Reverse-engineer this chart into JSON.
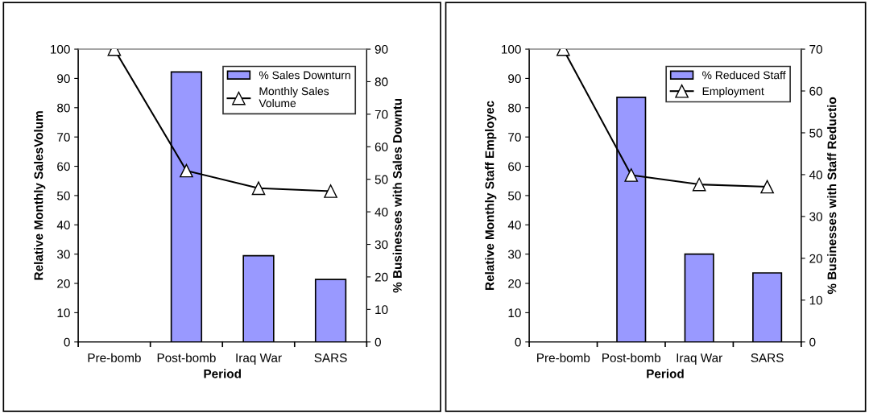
{
  "chart_data": [
    {
      "type": "bar",
      "categories": [
        "Pre-bomb",
        "Post-bomb",
        "Iraq War",
        "SARS"
      ],
      "xlabel": "Period",
      "ylabel": "Relative Monthly SalesVolum",
      "y2label": "% Businesses with Sales Downtu",
      "ylim": [
        0,
        100
      ],
      "yticks": [
        0,
        10,
        20,
        30,
        40,
        50,
        60,
        70,
        80,
        90,
        100
      ],
      "y2lim": [
        0,
        90
      ],
      "y2ticks": [
        0,
        10,
        20,
        30,
        40,
        50,
        60,
        70,
        80,
        90
      ],
      "legend": "top right",
      "grid": false,
      "series": [
        {
          "name": "% Sales Downturn",
          "axis": "y2",
          "color": "#9999ff",
          "values": [
            null,
            83,
            26.5,
            19.2
          ]
        },
        {
          "name": "Monthly Sales\nVolume",
          "type": "line",
          "axis": "y",
          "color": "#000000",
          "marker": "triangle",
          "values": [
            100,
            58.5,
            52.5,
            51.5
          ]
        }
      ]
    },
    {
      "type": "bar",
      "categories": [
        "Pre-bomb",
        "Post-bomb",
        "Iraq War",
        "SARS"
      ],
      "xlabel": "Period",
      "ylabel": "Relative Monthly Staff Employec",
      "y2label": "% Businesses with Staff Reductio",
      "ylim": [
        0,
        100
      ],
      "yticks": [
        0,
        10,
        20,
        30,
        40,
        50,
        60,
        70,
        80,
        90,
        100
      ],
      "y2lim": [
        0,
        70
      ],
      "y2ticks": [
        0,
        10,
        20,
        30,
        40,
        50,
        60,
        70
      ],
      "legend": "top right",
      "grid": false,
      "series": [
        {
          "name": "% Reduced Staff",
          "axis": "y2",
          "color": "#9999ff",
          "values": [
            null,
            58.5,
            21,
            16.5
          ]
        },
        {
          "name": "Employment",
          "type": "line",
          "axis": "y",
          "color": "#000000",
          "marker": "triangle",
          "values": [
            100,
            57,
            53.8,
            53
          ]
        }
      ]
    }
  ]
}
